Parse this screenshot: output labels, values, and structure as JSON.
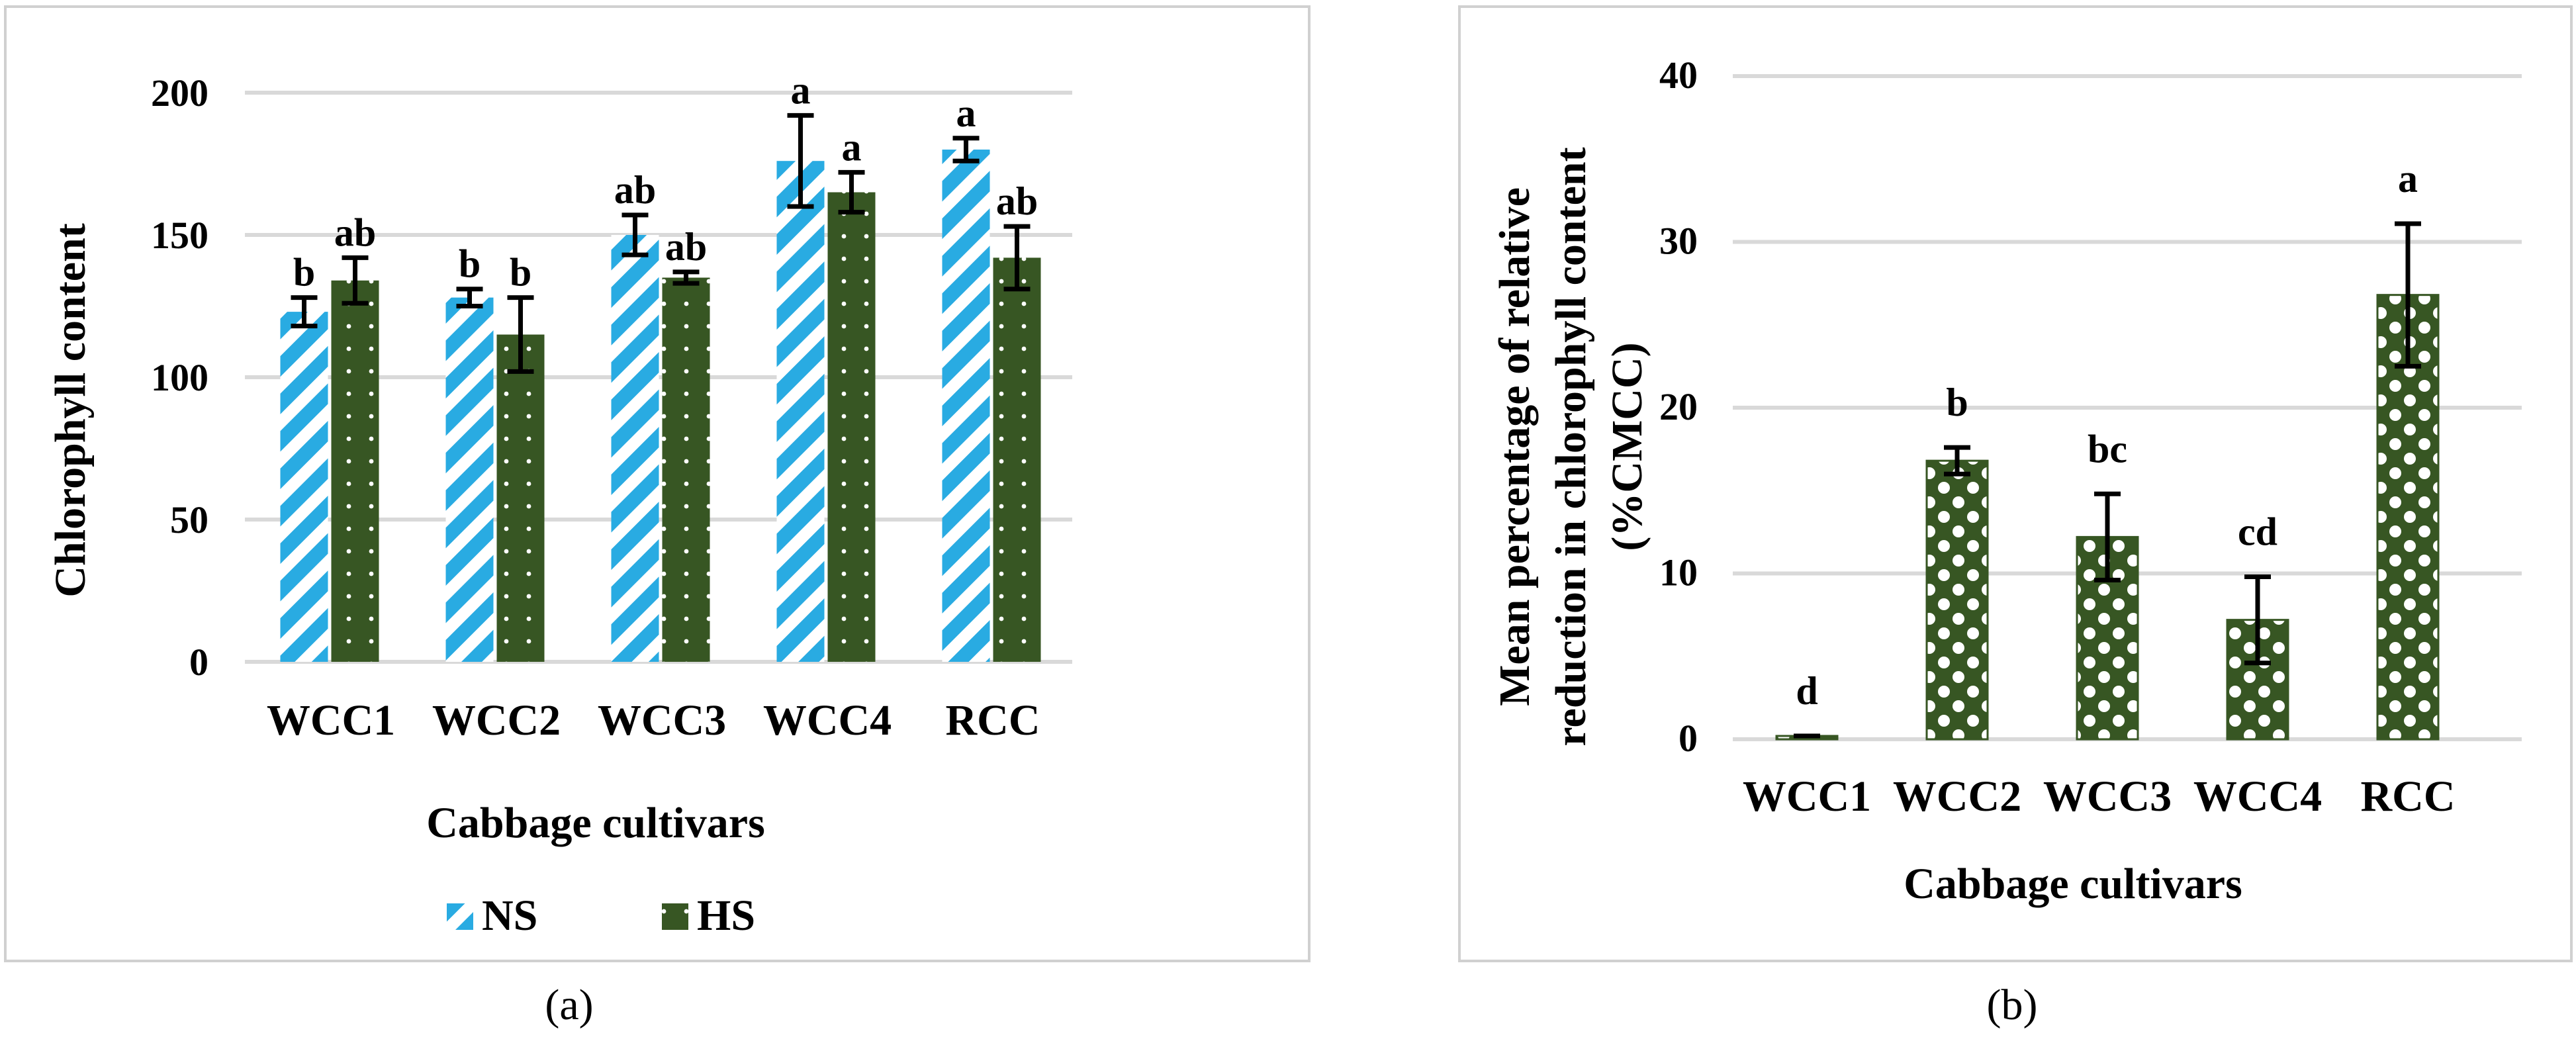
{
  "chart_data": [
    {
      "panel": "a",
      "type": "bar",
      "caption": "(a)",
      "title": "",
      "xlabel": "Cabbage cultivars",
      "ylabel": "Chlorophyll content",
      "ylim": [
        0,
        200
      ],
      "yticks": [
        0,
        50,
        100,
        150,
        200
      ],
      "grid": true,
      "legend_position": "bottom",
      "categories": [
        "WCC1",
        "WCC2",
        "WCC3",
        "WCC4",
        "RCC"
      ],
      "series": [
        {
          "name": "NS",
          "color": "#29abe2",
          "pattern": "diagonal-stripes",
          "values": [
            123,
            128,
            150,
            176,
            180
          ],
          "errors": [
            5,
            3,
            7,
            16,
            4
          ],
          "labels": [
            "b",
            "b",
            "ab",
            "a",
            "a"
          ]
        },
        {
          "name": "HS",
          "color": "#375623",
          "pattern": "dots",
          "values": [
            134,
            115,
            135,
            165,
            142
          ],
          "errors": [
            8,
            13,
            2,
            7,
            11
          ],
          "labels": [
            "ab",
            "b",
            "ab",
            "a",
            "ab"
          ]
        }
      ]
    },
    {
      "panel": "b",
      "type": "bar",
      "caption": "(b)",
      "title": "",
      "xlabel": "Cabbage cultivars",
      "ylabel": [
        "Mean percentage of relative",
        "reduction in chlorophyll content",
        "(%CMCC)"
      ],
      "ylim": [
        0,
        40
      ],
      "yticks": [
        0,
        10,
        20,
        30,
        40
      ],
      "grid": true,
      "categories": [
        "WCC1",
        "WCC2",
        "WCC3",
        "WCC4",
        "RCC"
      ],
      "series": [
        {
          "name": "%CMCC",
          "color": "#375623",
          "pattern": "checker",
          "values": [
            0.2,
            16.8,
            12.2,
            7.2,
            26.8
          ],
          "errors": [
            0,
            0.8,
            2.6,
            2.6,
            4.3
          ],
          "labels": [
            "d",
            "b",
            "bc",
            "cd",
            "a"
          ]
        }
      ]
    }
  ]
}
